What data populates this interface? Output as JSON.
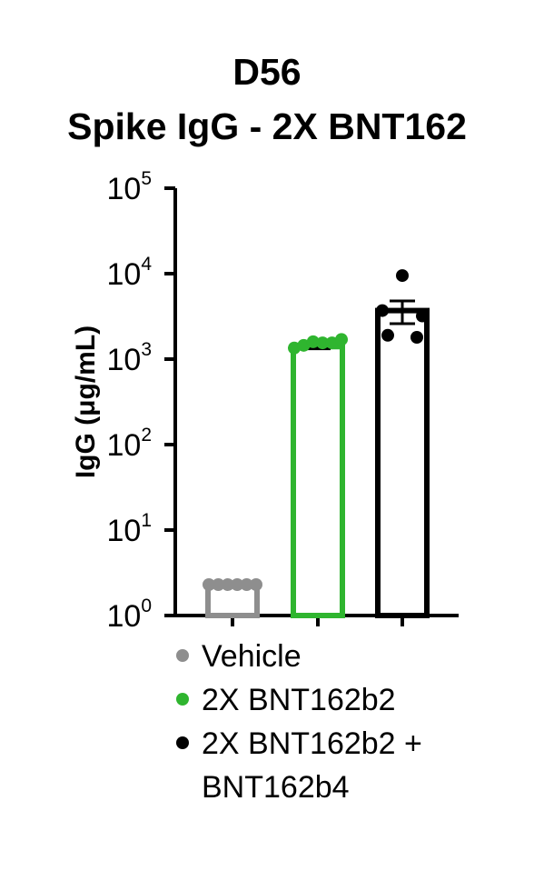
{
  "chart_data": {
    "type": "bar",
    "title": "D56",
    "subtitle": "Spike IgG - 2X BNT162",
    "ylabel": "IgG (μg/mL)",
    "xlabel": "",
    "yscale": "log",
    "ylim": [
      1,
      100000
    ],
    "y_ticks": [
      {
        "base": "10",
        "exp": "0",
        "value": 1
      },
      {
        "base": "10",
        "exp": "1",
        "value": 10
      },
      {
        "base": "10",
        "exp": "2",
        "value": 100
      },
      {
        "base": "10",
        "exp": "3",
        "value": 1000
      },
      {
        "base": "10",
        "exp": "4",
        "value": 10000
      },
      {
        "base": "10",
        "exp": "5",
        "value": 100000
      }
    ],
    "categories": [
      "Vehicle",
      "2X BNT162b2",
      "2X BNT162b2 + BNT162b4"
    ],
    "series": [
      {
        "name": "Vehicle",
        "color": "#8e8e8e",
        "value": 2.3,
        "error": 0,
        "points": [
          2.3,
          2.3,
          2.3,
          2.3,
          2.3,
          2.3
        ]
      },
      {
        "name": "2X BNT162b2",
        "color": "#2fb52f",
        "value": 1400,
        "error": 80,
        "points": [
          1350,
          1450,
          1600,
          1550,
          1550,
          1700
        ]
      },
      {
        "name": "2X BNT162b2 + BNT162b4",
        "color": "#000000",
        "value": 3700,
        "error": 1100,
        "points": [
          9500,
          3700,
          3200,
          1900,
          1800
        ]
      }
    ],
    "legend": {
      "position": "bottom",
      "entries": [
        {
          "lines": [
            "Vehicle"
          ],
          "color": "#8e8e8e"
        },
        {
          "lines": [
            "2X BNT162b2"
          ],
          "color": "#2fb52f"
        },
        {
          "lines": [
            "2X BNT162b2 +",
            "BNT162b4"
          ],
          "color": "#000000"
        }
      ]
    }
  }
}
